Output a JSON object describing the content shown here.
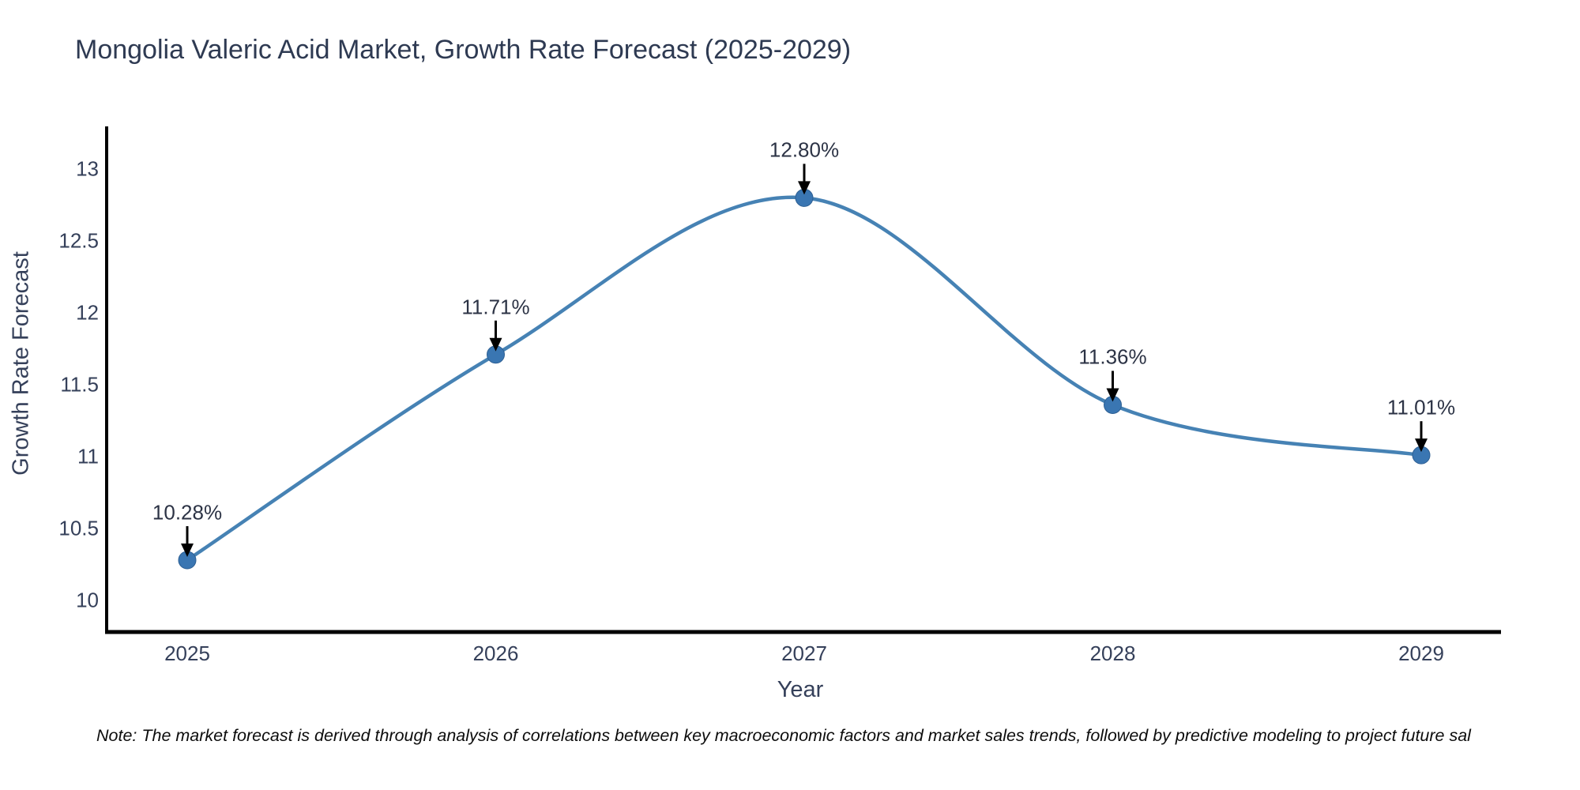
{
  "title": "Mongolia Valeric Acid Market, Growth Rate Forecast (2025-2029)",
  "note": "Note: The market forecast is derived through analysis of correlations between key macroeconomic factors and market sales trends, followed by predictive modeling to project future sal",
  "chart_data": {
    "type": "line",
    "title": "Mongolia Valeric Acid Market, Growth Rate Forecast (2025-2029)",
    "xlabel": "Year",
    "ylabel": "Growth Rate Forecast",
    "x": [
      2025,
      2026,
      2027,
      2028,
      2029
    ],
    "values": [
      10.28,
      11.71,
      12.8,
      11.36,
      11.01
    ],
    "point_labels": [
      "10.28%",
      "11.71%",
      "12.80%",
      "11.36%",
      "11.01%"
    ],
    "yticks": [
      10,
      10.5,
      11,
      11.5,
      12,
      12.5,
      13
    ],
    "ylim": [
      9.78,
      13.3
    ],
    "line_shape": "spline",
    "grid": false,
    "legend": "none",
    "colors": {
      "line": "#4682b4",
      "marker": "#3a76b2",
      "marker_edge": "#2d5f93",
      "axis": "#000000",
      "annotation_arrow": "#000000"
    }
  }
}
